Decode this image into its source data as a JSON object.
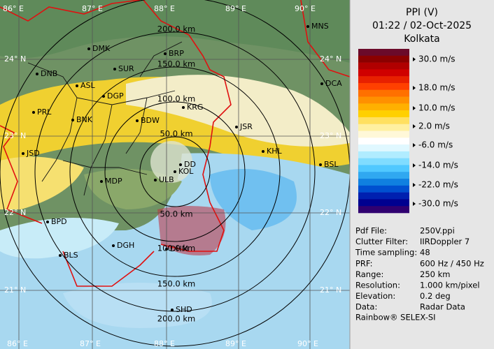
{
  "header": {
    "product": "PPI (V)",
    "datetime": "01:22 / 02-Oct-2025",
    "site": "Kolkata"
  },
  "legend": {
    "labels": [
      "30.0 m/s",
      "18.0 m/s",
      "10.0 m/s",
      "2.0 m/s",
      "-6.0 m/s",
      "-14.0 m/s",
      "-22.0 m/s",
      "-30.0 m/s"
    ]
  },
  "info": {
    "rows": [
      [
        "Pdf File:",
        "250V.ppi"
      ],
      [
        "Clutter Filter:",
        "IIRDoppler 7"
      ],
      [
        "Time sampling:",
        "48"
      ],
      [
        "PRF:",
        "600 Hz / 450 Hz"
      ],
      [
        "Range:",
        "250 km"
      ],
      [
        "Resolution:",
        "1.000 km/pixel"
      ],
      [
        "Elevation:",
        "0.2 deg"
      ],
      [
        "Data:",
        "Radar Data"
      ]
    ]
  },
  "footer": "Rainbow® SELEX-SI",
  "map": {
    "lon_labels": [
      "86° E",
      "87° E",
      "88° E",
      "89° E",
      "90° E"
    ],
    "lat_labels": [
      "24° N",
      "23° N",
      "22° N",
      "21° N"
    ],
    "range_labels": [
      "200.0 km",
      "150.0 km",
      "100.0 km",
      "50.0 km",
      "50.0 km",
      "100.0 km",
      "150.0 km",
      "200.0 km"
    ],
    "cities": [
      "MNS",
      "DMK",
      "BRP",
      "DNB",
      "SUR",
      "DCA",
      "ASL",
      "DGP",
      "KRG",
      "PRL",
      "BNK",
      "BDW",
      "JSR",
      "JSD",
      "KHL",
      "BSL",
      "MDP",
      "DD",
      "KOL",
      "ULB",
      "BPD",
      "DGH",
      "DHM",
      "BLS",
      "SHD"
    ]
  }
}
